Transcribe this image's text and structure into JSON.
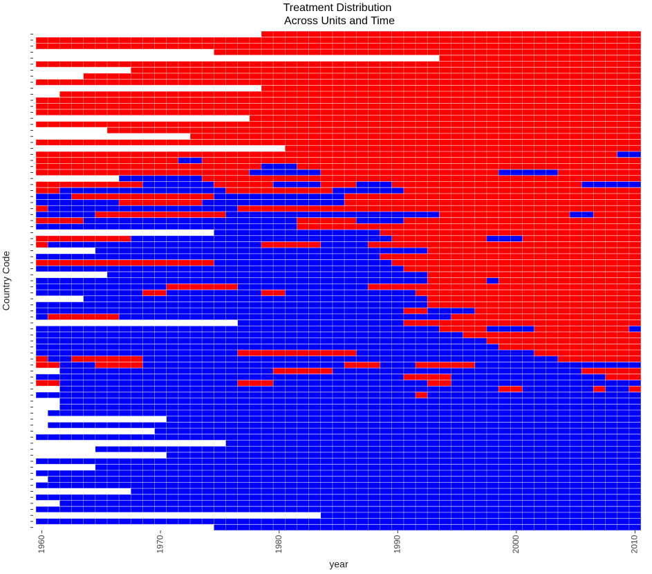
{
  "chart_data": {
    "type": "heatmap",
    "title": [
      "Treatment Distribution",
      "Across Units and Time"
    ],
    "x_label": "year",
    "y_label": "Country Code",
    "xlim": [
      1959.5,
      2010.5
    ],
    "xticks": [
      1960,
      1970,
      1980,
      1990,
      2000,
      2010
    ],
    "color_treated": "#ff0000",
    "color_control": "#0000ff",
    "rows": [
      [
        [
          1979,
          2010,
          1
        ]
      ],
      [
        [
          1960,
          2010,
          1
        ]
      ],
      [
        [
          1960,
          2010,
          1
        ]
      ],
      [
        [
          1975,
          2010,
          1
        ]
      ],
      [
        [
          1994,
          2010,
          1
        ]
      ],
      [
        [
          1960,
          2010,
          1
        ]
      ],
      [
        [
          1968,
          2010,
          1
        ]
      ],
      [
        [
          1964,
          2010,
          1
        ]
      ],
      [
        [
          1960,
          2010,
          1
        ]
      ],
      [
        [
          1979,
          2010,
          1
        ]
      ],
      [
        [
          1962,
          2010,
          1
        ]
      ],
      [
        [
          1960,
          2010,
          1
        ]
      ],
      [
        [
          1960,
          2010,
          1
        ]
      ],
      [
        [
          1960,
          2010,
          1
        ]
      ],
      [
        [
          1978,
          2010,
          1
        ]
      ],
      [
        [
          1960,
          2010,
          1
        ]
      ],
      [
        [
          1966,
          2010,
          1
        ]
      ],
      [
        [
          1973,
          2010,
          1
        ]
      ],
      [
        [
          1960,
          2010,
          1
        ]
      ],
      [
        [
          1981,
          2010,
          1
        ]
      ],
      [
        [
          1960,
          2008,
          1
        ],
        [
          2009,
          2010,
          0
        ]
      ],
      [
        [
          1960,
          1971,
          1
        ],
        [
          1972,
          1973,
          0
        ],
        [
          1974,
          2010,
          1
        ]
      ],
      [
        [
          1960,
          1978,
          1
        ],
        [
          1979,
          1981,
          0
        ],
        [
          1982,
          2010,
          1
        ]
      ],
      [
        [
          1960,
          1977,
          1
        ],
        [
          1978,
          1983,
          0
        ],
        [
          1984,
          1998,
          1
        ],
        [
          1999,
          2003,
          0
        ],
        [
          2004,
          2010,
          1
        ]
      ],
      [
        [
          1967,
          1973,
          0
        ],
        [
          1974,
          2010,
          1
        ]
      ],
      [
        [
          1960,
          1968,
          1
        ],
        [
          1969,
          1974,
          0
        ],
        [
          1975,
          1979,
          1
        ],
        [
          1980,
          1983,
          0
        ],
        [
          1984,
          1986,
          1
        ],
        [
          1987,
          1989,
          0
        ],
        [
          1990,
          2005,
          1
        ],
        [
          2006,
          2010,
          0
        ]
      ],
      [
        [
          1960,
          1961,
          1
        ],
        [
          1962,
          1975,
          0
        ],
        [
          1976,
          1984,
          1
        ],
        [
          1985,
          1990,
          0
        ],
        [
          1991,
          2010,
          1
        ]
      ],
      [
        [
          1960,
          1962,
          0
        ],
        [
          1963,
          1974,
          1
        ],
        [
          1975,
          1985,
          0
        ],
        [
          1986,
          2010,
          1
        ]
      ],
      [
        [
          1960,
          1966,
          0
        ],
        [
          1967,
          1973,
          1
        ],
        [
          1974,
          1985,
          0
        ],
        [
          1986,
          2010,
          1
        ]
      ],
      [
        [
          1960,
          1960,
          1
        ],
        [
          1961,
          1976,
          0
        ],
        [
          1977,
          2010,
          1
        ]
      ],
      [
        [
          1960,
          1964,
          0
        ],
        [
          1965,
          1975,
          1
        ],
        [
          1976,
          1993,
          0
        ],
        [
          1994,
          2004,
          1
        ],
        [
          2005,
          2006,
          0
        ],
        [
          2007,
          2010,
          1
        ]
      ],
      [
        [
          1960,
          1963,
          1
        ],
        [
          1964,
          1981,
          0
        ],
        [
          1982,
          1986,
          1
        ],
        [
          1987,
          1990,
          0
        ],
        [
          1991,
          2010,
          1
        ]
      ],
      [
        [
          1960,
          1981,
          0
        ],
        [
          1982,
          2010,
          1
        ]
      ],
      [
        [
          1975,
          1988,
          0
        ],
        [
          1989,
          2010,
          1
        ]
      ],
      [
        [
          1960,
          1967,
          1
        ],
        [
          1968,
          1989,
          0
        ],
        [
          1990,
          1997,
          1
        ],
        [
          1998,
          2000,
          0
        ],
        [
          2001,
          2010,
          1
        ]
      ],
      [
        [
          1960,
          1960,
          1
        ],
        [
          1961,
          1978,
          0
        ],
        [
          1979,
          1983,
          1
        ],
        [
          1984,
          1987,
          0
        ],
        [
          1988,
          2010,
          1
        ]
      ],
      [
        [
          1965,
          1992,
          0
        ],
        [
          1993,
          2010,
          1
        ]
      ],
      [
        [
          1960,
          1988,
          0
        ],
        [
          1989,
          2010,
          1
        ]
      ],
      [
        [
          1960,
          1974,
          1
        ],
        [
          1975,
          1989,
          0
        ],
        [
          1990,
          2010,
          1
        ]
      ],
      [
        [
          1960,
          1990,
          0
        ],
        [
          1991,
          2010,
          1
        ]
      ],
      [
        [
          1966,
          1992,
          0
        ],
        [
          1993,
          2010,
          1
        ]
      ],
      [
        [
          1960,
          1992,
          0
        ],
        [
          1993,
          1997,
          1
        ],
        [
          1998,
          1998,
          0
        ],
        [
          1999,
          2010,
          1
        ]
      ],
      [
        [
          1960,
          1970,
          0
        ],
        [
          1971,
          1976,
          1
        ],
        [
          1977,
          1987,
          0
        ],
        [
          1988,
          2010,
          1
        ]
      ],
      [
        [
          1960,
          1968,
          0
        ],
        [
          1969,
          1970,
          1
        ],
        [
          1971,
          1978,
          0
        ],
        [
          1979,
          1980,
          1
        ],
        [
          1981,
          1991,
          0
        ],
        [
          1992,
          2010,
          1
        ]
      ],
      [
        [
          1964,
          1992,
          0
        ],
        [
          1993,
          2010,
          1
        ]
      ],
      [
        [
          1960,
          1992,
          0
        ],
        [
          1993,
          2010,
          1
        ]
      ],
      [
        [
          1960,
          1990,
          0
        ],
        [
          1991,
          1992,
          1
        ],
        [
          1993,
          1996,
          0
        ],
        [
          1997,
          2010,
          1
        ]
      ],
      [
        [
          1960,
          1960,
          0
        ],
        [
          1961,
          1966,
          1
        ],
        [
          1967,
          1994,
          0
        ],
        [
          1995,
          2010,
          1
        ]
      ],
      [
        [
          1977,
          1990,
          0
        ],
        [
          1991,
          2010,
          1
        ]
      ],
      [
        [
          1960,
          1993,
          0
        ],
        [
          1994,
          1997,
          1
        ],
        [
          1998,
          2001,
          0
        ],
        [
          2002,
          2009,
          1
        ],
        [
          2010,
          2010,
          0
        ]
      ],
      [
        [
          1960,
          1995,
          0
        ],
        [
          1996,
          2010,
          1
        ]
      ],
      [
        [
          1960,
          1997,
          0
        ],
        [
          1998,
          2010,
          1
        ]
      ],
      [
        [
          1960,
          1998,
          0
        ],
        [
          1999,
          2010,
          1
        ]
      ],
      [
        [
          1960,
          1976,
          0
        ],
        [
          1977,
          1986,
          1
        ],
        [
          1987,
          2001,
          0
        ],
        [
          2002,
          2010,
          1
        ]
      ],
      [
        [
          1960,
          1960,
          1
        ],
        [
          1961,
          1962,
          0
        ],
        [
          1963,
          1968,
          1
        ],
        [
          1969,
          2003,
          0
        ],
        [
          2004,
          2010,
          1
        ]
      ],
      [
        [
          1960,
          1961,
          1
        ],
        [
          1962,
          1964,
          0
        ],
        [
          1965,
          1968,
          1
        ],
        [
          1969,
          1985,
          0
        ],
        [
          1986,
          1988,
          1
        ],
        [
          1989,
          1991,
          0
        ],
        [
          1992,
          1996,
          1
        ],
        [
          1997,
          2010,
          0
        ]
      ],
      [
        [
          1962,
          1979,
          0
        ],
        [
          1980,
          1984,
          1
        ],
        [
          1985,
          2005,
          0
        ],
        [
          2006,
          2010,
          1
        ]
      ],
      [
        [
          1960,
          1990,
          0
        ],
        [
          1991,
          1994,
          1
        ],
        [
          1995,
          2007,
          0
        ],
        [
          2008,
          2010,
          1
        ]
      ],
      [
        [
          1960,
          1961,
          1
        ],
        [
          1962,
          1976,
          0
        ],
        [
          1977,
          1979,
          1
        ],
        [
          1980,
          1992,
          0
        ],
        [
          1993,
          1994,
          1
        ],
        [
          1995,
          2010,
          0
        ]
      ],
      [
        [
          1962,
          1998,
          0
        ],
        [
          1999,
          2000,
          1
        ],
        [
          2001,
          2006,
          0
        ],
        [
          2007,
          2007,
          1
        ],
        [
          2008,
          2009,
          0
        ],
        [
          2010,
          2010,
          1
        ]
      ],
      [
        [
          1960,
          1991,
          0
        ],
        [
          1992,
          1992,
          1
        ],
        [
          1993,
          2010,
          0
        ]
      ],
      [
        [
          1962,
          2010,
          0
        ]
      ],
      [
        [
          1962,
          2010,
          0
        ]
      ],
      [
        [
          1961,
          2010,
          0
        ]
      ],
      [
        [
          1971,
          2010,
          0
        ]
      ],
      [
        [
          1961,
          2010,
          0
        ]
      ],
      [
        [
          1970,
          2010,
          0
        ]
      ],
      [
        [
          1960,
          2010,
          0
        ]
      ],
      [
        [
          1976,
          2010,
          0
        ]
      ],
      [
        [
          1965,
          2010,
          0
        ]
      ],
      [
        [
          1971,
          2010,
          0
        ]
      ],
      [
        [
          1960,
          2010,
          0
        ]
      ],
      [
        [
          1965,
          2010,
          0
        ]
      ],
      [
        [
          1960,
          2010,
          0
        ]
      ],
      [
        [
          1961,
          2010,
          0
        ]
      ],
      [
        [
          1960,
          2010,
          0
        ]
      ],
      [
        [
          1968,
          2010,
          0
        ]
      ],
      [
        [
          1960,
          2010,
          0
        ]
      ],
      [
        [
          1962,
          2010,
          0
        ]
      ],
      [
        [
          1960,
          2010,
          0
        ]
      ],
      [
        [
          1984,
          2010,
          0
        ]
      ],
      [
        [
          1960,
          2010,
          0
        ]
      ],
      [
        [
          1975,
          2010,
          0
        ]
      ]
    ]
  }
}
